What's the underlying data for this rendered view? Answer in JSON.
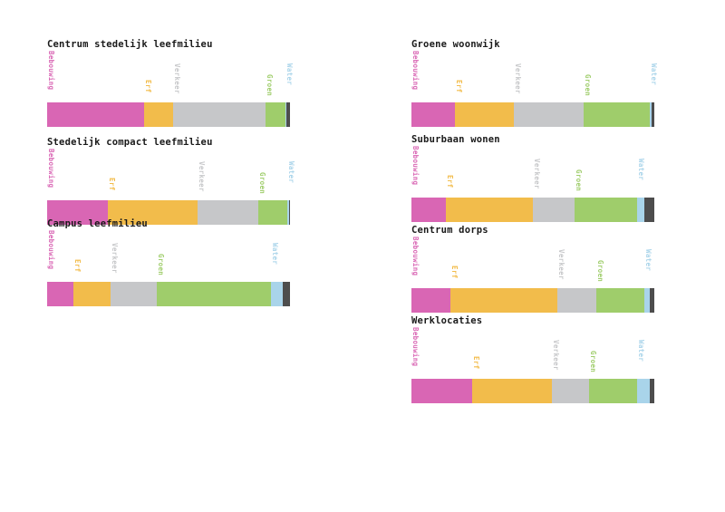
{
  "legend_colors": {
    "Bebouwing": "#d966b4",
    "Erf": "#f2bc4b",
    "Verkeer": "#c6c7c9",
    "Groen": "#9fcd6b",
    "Water": "#a9d4ea",
    "Overig": "#4d4d4d"
  },
  "chart_data": [
    {
      "type": "bar",
      "stacked": true,
      "title": "Centrum stedelijk leefmilieu",
      "categories": [
        "Bebouwing",
        "Erf",
        "Verkeer",
        "Groen",
        "Water",
        "Overig"
      ],
      "values": [
        40,
        12,
        38,
        8,
        0.5,
        1.5
      ]
    },
    {
      "type": "bar",
      "stacked": true,
      "title": "Stedelijk compact leefmilieu",
      "categories": [
        "Bebouwing",
        "Erf",
        "Verkeer",
        "Groen",
        "Water",
        "Overig"
      ],
      "values": [
        25,
        37,
        25,
        12,
        0.5,
        0.5
      ]
    },
    {
      "type": "bar",
      "stacked": true,
      "title": "Campus leefmilieu",
      "categories": [
        "Bebouwing",
        "Erf",
        "Verkeer",
        "Groen",
        "Water",
        "Overig"
      ],
      "values": [
        11,
        15,
        19,
        47,
        5,
        3
      ]
    },
    {
      "type": "bar",
      "stacked": true,
      "title": "Groene woonwijk",
      "categories": [
        "Bebouwing",
        "Erf",
        "Verkeer",
        "Groen",
        "Water",
        "Overig"
      ],
      "values": [
        18,
        24,
        29,
        27,
        1,
        1
      ]
    },
    {
      "type": "bar",
      "stacked": true,
      "title": "Suburbaan wonen",
      "categories": [
        "Bebouwing",
        "Erf",
        "Verkeer",
        "Groen",
        "Water",
        "Overig"
      ],
      "values": [
        14,
        36,
        17,
        26,
        3,
        4
      ]
    },
    {
      "type": "bar",
      "stacked": true,
      "title": "Centrum dorps",
      "categories": [
        "Bebouwing",
        "Erf",
        "Verkeer",
        "Groen",
        "Water",
        "Overig"
      ],
      "values": [
        16,
        44,
        16,
        20,
        2,
        2
      ]
    },
    {
      "type": "bar",
      "stacked": true,
      "title": "Werklocaties",
      "categories": [
        "Bebouwing",
        "Erf",
        "Verkeer",
        "Groen",
        "Water",
        "Overig"
      ],
      "values": [
        25,
        33,
        15,
        20,
        5,
        2
      ]
    }
  ]
}
